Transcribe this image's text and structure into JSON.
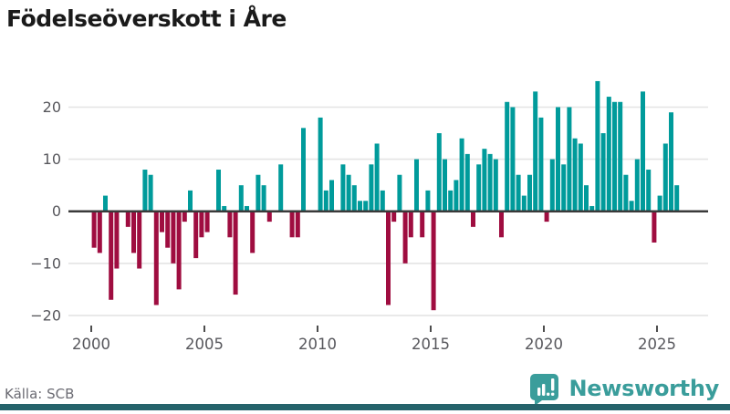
{
  "title": "Födelseöverskott i Åre",
  "source": "Källa: SCB",
  "branding": {
    "name": "Newsworthy",
    "logo_icon": "bar-chart-speech-bubble-icon"
  },
  "colors": {
    "positive_bar": "#009b9b",
    "negative_bar": "#9f0d40",
    "brand_teal": "#3a9d9b",
    "footer_strip": "#25636b",
    "gridline": "#e4e4e4",
    "zero_line": "#3a3a3a",
    "axis_text": "#57575c",
    "title_text": "#1a1a1a",
    "source_text": "#6b6b73"
  },
  "chart_data": {
    "type": "bar",
    "title": "Födelseöverskott i Åre",
    "xlabel": "",
    "ylabel": "",
    "frequency": "quarterly",
    "start_year": 2000,
    "end_year": 2025,
    "x_tick_labels": [
      "2000",
      "2005",
      "2010",
      "2015",
      "2020",
      "2025"
    ],
    "y_ticks": [
      20,
      10,
      0,
      -10,
      -20
    ],
    "ylim": [
      -22,
      27
    ],
    "grid": true,
    "legend": "none",
    "series": [
      {
        "name": "Födelseöverskott",
        "values": [
          -7,
          -8,
          3,
          -17,
          -11,
          0,
          -3,
          -8,
          -11,
          8,
          7,
          -18,
          -4,
          -7,
          -10,
          -15,
          -2,
          4,
          -9,
          -5,
          -4,
          0,
          8,
          1,
          -5,
          -16,
          5,
          1,
          -8,
          7,
          5,
          -2,
          0,
          9,
          0,
          -5,
          -5,
          16,
          0,
          0,
          18,
          4,
          6,
          0,
          9,
          7,
          5,
          2,
          2,
          9,
          13,
          4,
          -18,
          -2,
          7,
          -10,
          -5,
          10,
          -5,
          4,
          -19,
          15,
          10,
          4,
          6,
          14,
          11,
          -3,
          9,
          12,
          11,
          10,
          -5,
          21,
          20,
          7,
          3,
          7,
          23,
          18,
          -2,
          10,
          20,
          9,
          20,
          14,
          13,
          5,
          1,
          25,
          15,
          22,
          21,
          21,
          7,
          2,
          10,
          23,
          8,
          -6,
          3,
          13,
          19,
          5
        ]
      }
    ]
  }
}
